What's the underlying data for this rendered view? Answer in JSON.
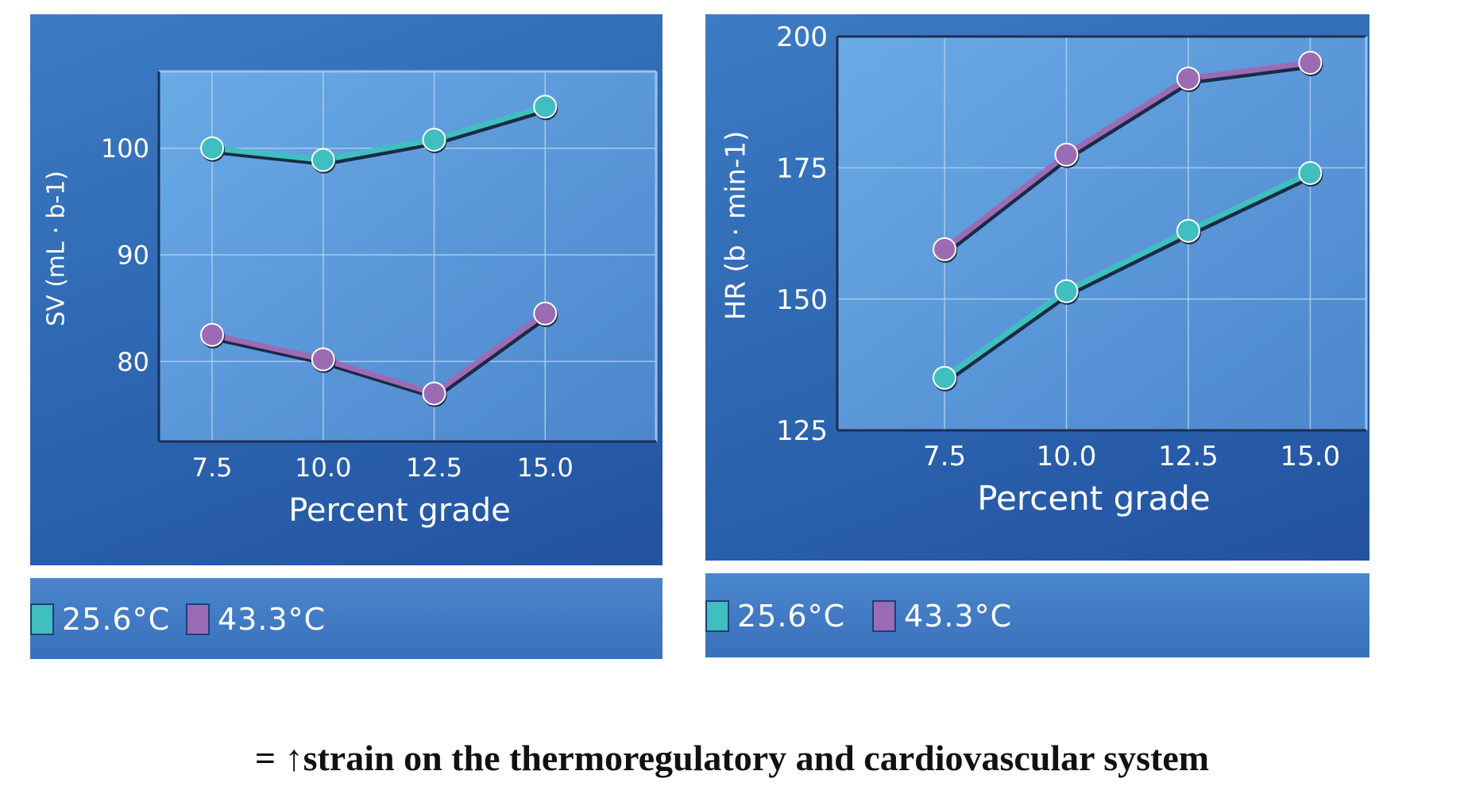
{
  "chart_data": [
    {
      "type": "line",
      "xlabel": "Percent grade",
      "ylabel": "SV (mL · b-1)",
      "x": [
        7.5,
        10.0,
        12.5,
        15.0
      ],
      "xticks": [
        "7.5",
        "10.0",
        "12.5",
        "15.0"
      ],
      "yticks": [
        80,
        90,
        100
      ],
      "xlim": [
        6.3,
        17.5
      ],
      "ylim": [
        72.5,
        107.2
      ],
      "series": [
        {
          "name": "25.6°C",
          "color": "#3fbfbf",
          "values": [
            100.0,
            98.9,
            100.8,
            103.9
          ]
        },
        {
          "name": "43.3°C",
          "color": "#9b6bb4",
          "values": [
            82.5,
            80.2,
            77.0,
            84.5
          ]
        }
      ],
      "legend": [
        "25.6°C",
        "43.3°C"
      ]
    },
    {
      "type": "line",
      "xlabel": "Percent grade",
      "ylabel": "HR (b · min-1)",
      "x": [
        7.5,
        10.0,
        12.5,
        15.0
      ],
      "xticks": [
        "7.5",
        "10.0",
        "12.5",
        "15.0"
      ],
      "yticks": [
        125,
        150,
        175,
        200
      ],
      "xlim": [
        5.3,
        16.15
      ],
      "ylim": [
        125,
        200
      ],
      "series": [
        {
          "name": "25.6°C",
          "color": "#3fbfbf",
          "values": [
            135,
            151.5,
            163,
            174
          ]
        },
        {
          "name": "43.3°C",
          "color": "#9b6bb4",
          "values": [
            159.5,
            177.5,
            192,
            195
          ]
        }
      ],
      "legend": [
        "25.6°C",
        "43.3°C"
      ]
    }
  ],
  "footer": {
    "prefix": "= ↑ ",
    "text": "strain on the thermoregulatory and cardiovascular system"
  }
}
